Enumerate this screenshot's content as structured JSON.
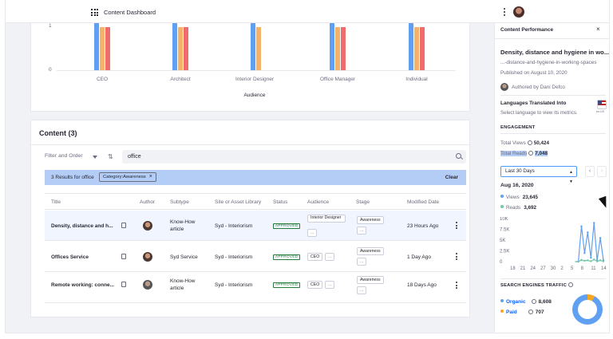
{
  "app": {
    "title": "Content Dashboard"
  },
  "colors": {
    "views": "#5fa0f2",
    "reads": "#70c8a5",
    "bar_blue": "#5fa0f2",
    "bar_orange": "#f5b26b",
    "bar_red": "#f06b6b",
    "accent": "#0b5fff",
    "approved": "#287d3c"
  },
  "chart_data": {
    "type": "bar",
    "xlabel": "Audience",
    "ylabel": "",
    "y_ticks": [
      "1",
      "0"
    ],
    "categories": [
      "CEO",
      "Architect",
      "Interior Designer",
      "Office Manager",
      "Individual"
    ],
    "series": [
      {
        "values": [
          1.1,
          1.1,
          1.1,
          1.1,
          1.1
        ]
      },
      {
        "values": [
          1.0,
          1.0,
          1.0,
          1.0,
          1.0
        ]
      },
      {
        "values": [
          1.0,
          1.0,
          0,
          1.0,
          1.0
        ]
      }
    ]
  },
  "content": {
    "title": "Content (3)",
    "filter_label": "Filter and Order",
    "search_value": "office",
    "results_text": "3 Results for office",
    "chip_label": "Category:Awareness",
    "clear_label": "Clear",
    "columns": [
      "Title",
      "Author",
      "Subtype",
      "Site or Asset Library",
      "Status",
      "Audience",
      "Stage",
      "Modified Date"
    ],
    "rows": [
      {
        "title": "Density, distance and h...",
        "subtype": "Know-How article",
        "site": "Syd - Interiorism",
        "status": "APPROVED",
        "audience": "Interior Designer",
        "audience_more": "...",
        "stage": "Awareness",
        "stage_more": "...",
        "modified": "23 Hours Ago"
      },
      {
        "title": "Offices Service",
        "subtype": "Syd Service",
        "site": "Syd - Interiorism",
        "status": "APPROVED",
        "audience": "CEO",
        "audience_more": "...",
        "stage": "Awareness",
        "stage_more": "...",
        "modified": "1 Day Ago"
      },
      {
        "title": "Remote working: conne...",
        "subtype": "Know-How article",
        "site": "Syd - Interiorism",
        "status": "APPROVED",
        "audience": "CEO",
        "audience_more": "...",
        "stage": "Awareness",
        "stage_more": "...",
        "modified": "18 Days Ago"
      }
    ]
  },
  "panel": {
    "title": "Content Performance",
    "close": "×",
    "doc_title": "Density, distance and hygiene in wo...",
    "doc_url": "...-distance-and-hygiene-in-working-spaces",
    "published": "Published on August 10, 2020",
    "author": "Authored by Dani Defco",
    "languages_title": "Languages Translated Into",
    "languages_sub": "Select language to view its metrics.",
    "flag_caption": "en-US",
    "engagement_label": "ENGAGEMENT",
    "total_views_label": "Total Views",
    "total_views": "50,424",
    "total_reads_label": "Total Reads",
    "total_reads": "7,048",
    "range": "Last 30 Days",
    "prev": "‹",
    "next": "›",
    "date": "Aug 16, 2020",
    "views_label": "Views",
    "views": "23,645",
    "reads_label": "Reads",
    "reads": "3,692",
    "y_ticks": [
      "10K",
      "7.5K",
      "5K",
      "2.5K",
      "0"
    ],
    "x_ticks": [
      "18",
      "21",
      "24",
      "27",
      "30",
      "2",
      "5",
      "8",
      "11",
      "14"
    ],
    "views_series": [
      0,
      0,
      0,
      0,
      0,
      0,
      0,
      0,
      0,
      0,
      0,
      0,
      0,
      0,
      0,
      0,
      0,
      0,
      0,
      0,
      0,
      0,
      8200,
      2000,
      6800,
      900,
      9000,
      300,
      5500,
      300
    ],
    "reads_series": [
      0,
      0,
      0,
      0,
      0,
      0,
      0,
      0,
      0,
      0,
      0,
      0,
      0,
      0,
      0,
      0,
      0,
      0,
      0,
      0,
      0,
      0,
      400,
      200,
      300,
      100,
      500,
      50,
      300,
      80
    ],
    "traffic_label": "SEARCH ENGINES TRAFFIC",
    "organic_label": "Organic",
    "organic": "8,608",
    "paid_label": "Paid",
    "paid": "707"
  }
}
